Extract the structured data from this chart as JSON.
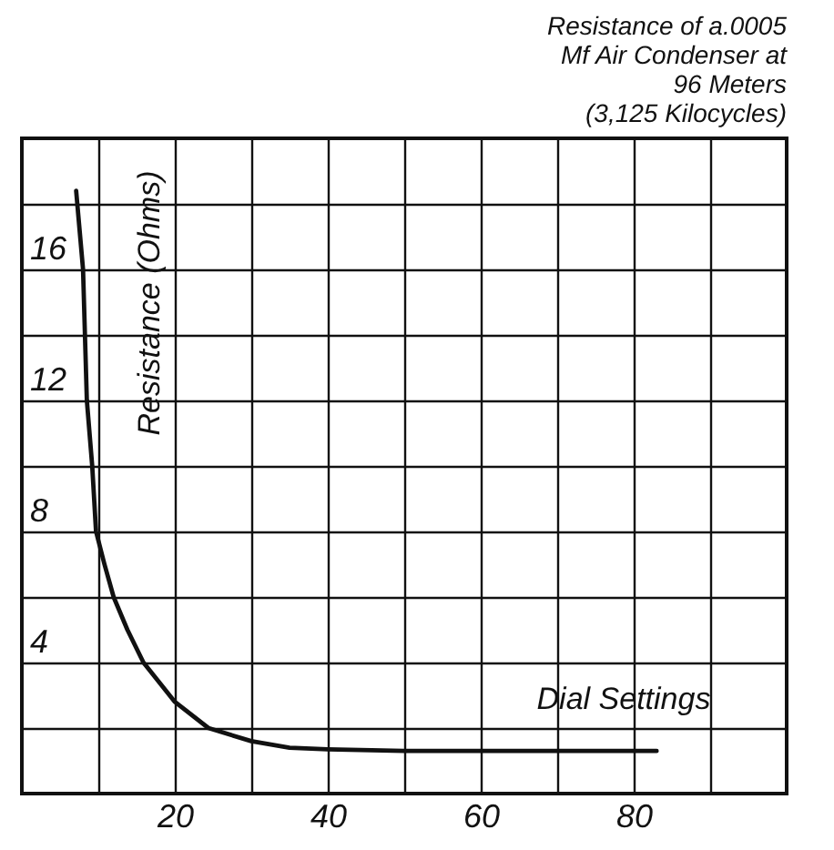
{
  "chart_data": {
    "type": "line",
    "title": "Resistance of a.0005\nMf Air Condenser at\n96 Meters\n(3,125 Kilocycles)",
    "xlabel": "Dial Settings",
    "ylabel": "Resistance (Ohms)",
    "x": [
      7.1,
      8.0,
      8.5,
      9.2,
      9.7,
      10.8,
      12,
      13.8,
      15.9,
      20,
      24.4,
      30,
      35,
      40,
      50,
      60,
      70,
      83
    ],
    "series": [
      {
        "color": "#111111",
        "values": [
          18.4,
          16,
          12,
          10,
          8,
          7,
          6,
          5,
          4,
          2.8,
          2,
          1.6,
          1.4,
          1.35,
          1.3,
          1.3,
          1.3,
          1.3
        ]
      }
    ],
    "xlim": [
      0,
      100
    ],
    "xticks": [
      {
        "value": 10,
        "label": null
      },
      20,
      {
        "value": 30,
        "label": null
      },
      40,
      {
        "value": 50,
        "label": null
      },
      60,
      {
        "value": 70,
        "label": null
      },
      80,
      {
        "value": 90,
        "label": null
      }
    ],
    "ylim": [
      0,
      20
    ],
    "yticks": [
      {
        "value": 2,
        "label": null
      },
      4,
      {
        "value": 6,
        "label": null
      },
      8,
      {
        "value": 10,
        "label": null
      },
      12,
      {
        "value": 14,
        "label": null
      },
      16,
      {
        "value": 18,
        "label": null
      }
    ],
    "grid": true,
    "marker": "none",
    "line_style": "solid"
  }
}
